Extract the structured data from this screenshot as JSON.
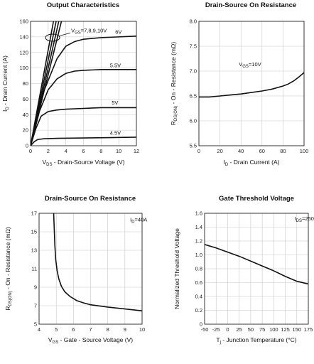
{
  "chart_data": [
    {
      "id": "output",
      "type": "line",
      "title": "Output Characteristics",
      "xlabel": "V₂ₛ - Drain-Source Voltage (V)",
      "xlabel_main": "V",
      "xlabel_sub": "DS",
      "xlabel_rest": " - Drain-Source Voltage (V)",
      "ylabel_main": "I",
      "ylabel_sub": "D",
      "ylabel_rest": " - Drain Current (A)",
      "xlim": [
        0,
        12
      ],
      "ylim": [
        0,
        160
      ],
      "xticks": [
        0,
        2,
        4,
        6,
        8,
        10,
        12
      ],
      "yticks": [
        0,
        20,
        40,
        60,
        80,
        100,
        120,
        140,
        160
      ],
      "grid": true,
      "annotations": [
        {
          "text": "V₂ₛ=7,8,9,10V",
          "main": "V",
          "sub": "GS",
          "rest": "=7,8,9,10V",
          "x": 4.6,
          "y": 146
        },
        {
          "text": "6V",
          "x": 9.6,
          "y": 144
        },
        {
          "text": "5.5V",
          "x": 9.0,
          "y": 101
        },
        {
          "text": "5V",
          "x": 9.2,
          "y": 53
        },
        {
          "text": "4.5V",
          "x": 9.0,
          "y": 14
        }
      ],
      "series": [
        {
          "x": [
            0,
            2.6
          ],
          "y": [
            0,
            160
          ]
        },
        {
          "x": [
            0,
            2.9
          ],
          "y": [
            0,
            160
          ]
        },
        {
          "x": [
            0,
            3.2
          ],
          "y": [
            0,
            160
          ]
        },
        {
          "x": [
            0,
            3.5
          ],
          "y": [
            0,
            160
          ]
        },
        {
          "x": [
            0,
            1.5,
            3,
            4,
            5,
            6,
            8,
            10,
            12
          ],
          "y": [
            0,
            70,
            112,
            128,
            134,
            137,
            139,
            140,
            141
          ]
        },
        {
          "x": [
            0,
            1,
            2,
            3,
            4,
            5,
            6,
            8,
            10,
            12
          ],
          "y": [
            0,
            44,
            72,
            86,
            93,
            96,
            97,
            98,
            98,
            98
          ]
        },
        {
          "x": [
            0,
            0.6,
            1.2,
            2,
            3,
            4,
            6,
            8,
            10,
            12
          ],
          "y": [
            0,
            22,
            38,
            44,
            46,
            47,
            48,
            49,
            49,
            49
          ]
        },
        {
          "x": [
            0,
            0.4,
            0.8,
            1.5,
            3,
            6,
            9,
            12
          ],
          "y": [
            0,
            5,
            8,
            9,
            9.5,
            10,
            10.5,
            11
          ]
        }
      ]
    },
    {
      "id": "rds_vs_id",
      "type": "line",
      "title": "Drain-Source On Resistance",
      "xlabel": "I₂ - Drain Current (A)",
      "xlabel_main": "I",
      "xlabel_sub": "D",
      "xlabel_rest": " - Drain Current (A)",
      "ylabel_main": "R",
      "ylabel_sub": "DS(ON)",
      "ylabel_rest": " - On - Resistance (mΩ)",
      "xlim": [
        0,
        100
      ],
      "ylim": [
        5.5,
        8.0
      ],
      "xticks": [
        0,
        20,
        40,
        60,
        80,
        100
      ],
      "yticks": [
        5.5,
        6.0,
        6.5,
        7.0,
        7.5,
        8.0
      ],
      "ytick_labels": [
        "5.5",
        "6.0",
        "6.5",
        "7.0",
        "7.5",
        "8.0"
      ],
      "grid": true,
      "annotations": [
        {
          "text": "V₂ₛ=10V",
          "main": "V",
          "sub": "GS",
          "rest": "=10V",
          "x": 38,
          "y": 7.1
        }
      ],
      "series": [
        {
          "x": [
            0,
            10,
            20,
            30,
            40,
            50,
            60,
            70,
            80,
            85,
            90,
            95,
            100
          ],
          "y": [
            6.48,
            6.48,
            6.5,
            6.52,
            6.54,
            6.57,
            6.6,
            6.64,
            6.7,
            6.74,
            6.8,
            6.88,
            6.97
          ]
        }
      ]
    },
    {
      "id": "rds_vs_vgs",
      "type": "line",
      "title": "Drain-Source On Resistance",
      "xlabel": "V₂ₛ - Gate - Source Voltage (V)",
      "xlabel_main": "V",
      "xlabel_sub": "GS",
      "xlabel_rest": " - Gate - Source Voltage (V)",
      "ylabel_main": "R",
      "ylabel_sub": "DS(ON)",
      "ylabel_rest": " - On - Resistance (mΩ)",
      "xlim": [
        4,
        10
      ],
      "ylim": [
        5,
        17
      ],
      "xticks": [
        4,
        5,
        6,
        7,
        8,
        9,
        10
      ],
      "yticks": [
        5,
        7,
        9,
        11,
        13,
        15,
        17
      ],
      "grid": true,
      "annotations": [
        {
          "text": "I₂=40A",
          "main": "I",
          "sub": "D",
          "rest": "=40A",
          "x": 9.3,
          "y": 16.1
        }
      ],
      "series": [
        {
          "x": [
            4.85,
            4.88,
            4.92,
            4.97,
            5.05,
            5.15,
            5.3,
            5.5,
            5.8,
            6.2,
            6.6,
            7,
            8,
            9,
            10
          ],
          "y": [
            17,
            15.5,
            13.5,
            12,
            10.8,
            9.9,
            9.1,
            8.5,
            8.0,
            7.55,
            7.3,
            7.1,
            6.85,
            6.65,
            6.45
          ]
        }
      ]
    },
    {
      "id": "vth_vs_tj",
      "type": "line",
      "title": "Gate Threshold Voltage",
      "xlabel": "Tⱼ - Junction Temperature (°C)",
      "xlabel_main": "T",
      "xlabel_sub": "j",
      "xlabel_rest": " - Junction Temperature (°C)",
      "ylabel_main": "Normalized Threshold Voltage",
      "ylabel_sub": "",
      "ylabel_rest": "",
      "xlim": [
        -50,
        175
      ],
      "ylim": [
        0,
        1.6
      ],
      "xticks": [
        -50,
        -25,
        0,
        25,
        50,
        75,
        100,
        125,
        150,
        175
      ],
      "yticks": [
        0,
        0.2,
        0.4,
        0.6,
        0.8,
        1.0,
        1.2,
        1.4,
        1.6
      ],
      "ytick_labels": [
        "0",
        "0.2",
        "0.4",
        "0.6",
        "0.8",
        "1.0",
        "1.2",
        "1.4",
        "1.6"
      ],
      "grid": true,
      "annotations": [
        {
          "text": "I₂=250uA",
          "main": "I",
          "sub": "DS",
          "rest": "=250uA",
          "x": 145,
          "y": 1.5
        }
      ],
      "series": [
        {
          "x": [
            -50,
            -25,
            0,
            25,
            50,
            75,
            100,
            125,
            150,
            175
          ],
          "y": [
            1.15,
            1.1,
            1.04,
            0.98,
            0.91,
            0.84,
            0.77,
            0.69,
            0.62,
            0.58
          ]
        }
      ]
    }
  ]
}
